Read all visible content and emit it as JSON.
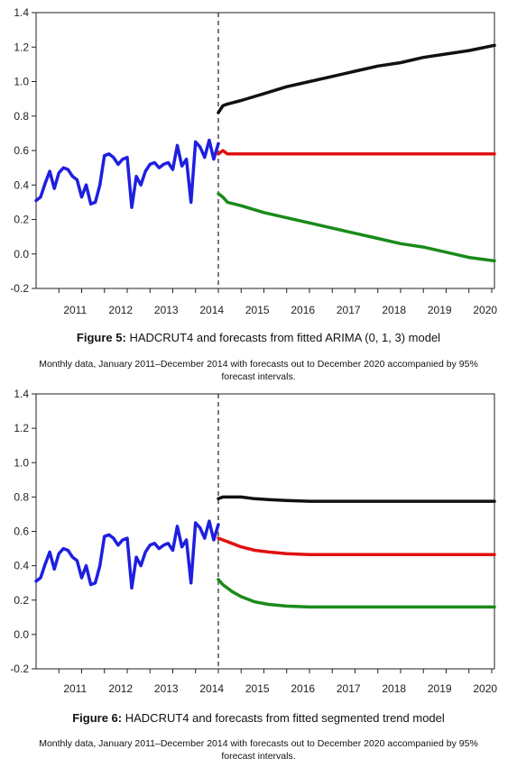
{
  "figures": [
    {
      "label": "Figure 5:",
      "title": "HADCRUT4 and forecasts from fitted ARIMA (0, 1, 3) model",
      "subtitle": "Monthly data, January 2011–December 2014 with forecasts out to December 2020 accompanied by 95% forecast intervals."
    },
    {
      "label": "Figure 6:",
      "title": "HADCRUT4 and forecasts from fitted segmented trend model",
      "subtitle": "Monthly data, January 2011–December 2014 with forecasts out to December 2020 accompanied by 95% forecast intervals."
    }
  ],
  "chart_data": [
    {
      "type": "line",
      "title": "",
      "xlabel": "",
      "ylabel": "",
      "xlim": [
        2010.5,
        2020.56
      ],
      "ylim": [
        -0.2,
        1.4
      ],
      "yticks": [
        -0.2,
        0.0,
        0.2,
        0.4,
        0.6,
        0.8,
        1.0,
        1.2,
        1.4
      ],
      "ytick_labels": [
        "-0.2",
        "0.0",
        "0.2",
        "0.4",
        "0.6",
        "0.8",
        "1.0",
        "1.2",
        "1.4"
      ],
      "xtick_labels": [
        "2011",
        "2012",
        "2013",
        "2014",
        "2015",
        "2016",
        "2017",
        "2018",
        "2019",
        "2020"
      ],
      "xtick_positions": [
        2011,
        2012,
        2013,
        2014,
        2015,
        2016,
        2017,
        2018,
        2019,
        2020
      ],
      "forecast_start": 2014.5,
      "grid": false,
      "series": [
        {
          "role": "observed",
          "color": "#1f1fe0",
          "x": [
            2010.5,
            2010.6,
            2010.7,
            2010.8,
            2010.9,
            2011.0,
            2011.1,
            2011.2,
            2011.3,
            2011.4,
            2011.5,
            2011.6,
            2011.7,
            2011.8,
            2011.9,
            2012.0,
            2012.1,
            2012.2,
            2012.3,
            2012.4,
            2012.5,
            2012.6,
            2012.7,
            2012.8,
            2012.9,
            2013.0,
            2013.1,
            2013.2,
            2013.3,
            2013.4,
            2013.5,
            2013.6,
            2013.7,
            2013.8,
            2013.9,
            2014.0,
            2014.1,
            2014.2,
            2014.3,
            2014.4,
            2014.5
          ],
          "y": [
            0.31,
            0.33,
            0.41,
            0.48,
            0.38,
            0.47,
            0.5,
            0.49,
            0.45,
            0.43,
            0.33,
            0.4,
            0.29,
            0.3,
            0.4,
            0.57,
            0.58,
            0.56,
            0.52,
            0.55,
            0.56,
            0.27,
            0.45,
            0.4,
            0.48,
            0.52,
            0.53,
            0.5,
            0.52,
            0.53,
            0.49,
            0.63,
            0.51,
            0.55,
            0.3,
            0.65,
            0.62,
            0.56,
            0.66,
            0.55,
            0.64
          ]
        },
        {
          "role": "upper-95",
          "color": "#111111",
          "x": [
            2014.5,
            2014.6,
            2014.7,
            2015.0,
            2015.5,
            2016.0,
            2016.5,
            2017.0,
            2017.5,
            2018.0,
            2018.5,
            2019.0,
            2019.5,
            2020.0,
            2020.56
          ],
          "y": [
            0.82,
            0.86,
            0.87,
            0.89,
            0.93,
            0.97,
            1.0,
            1.03,
            1.06,
            1.09,
            1.11,
            1.14,
            1.16,
            1.18,
            1.21
          ]
        },
        {
          "role": "forecast",
          "color": "#e01010",
          "x": [
            2014.5,
            2014.6,
            2014.7,
            2015.0,
            2016.0,
            2017.0,
            2018.0,
            2019.0,
            2020.0,
            2020.56
          ],
          "y": [
            0.58,
            0.6,
            0.58,
            0.58,
            0.58,
            0.58,
            0.58,
            0.58,
            0.58,
            0.58
          ]
        },
        {
          "role": "lower-95",
          "color": "#1a8a1a",
          "x": [
            2014.5,
            2014.6,
            2014.7,
            2015.0,
            2015.5,
            2016.0,
            2016.5,
            2017.0,
            2017.5,
            2018.0,
            2018.5,
            2019.0,
            2019.5,
            2020.0,
            2020.56
          ],
          "y": [
            0.35,
            0.33,
            0.3,
            0.28,
            0.24,
            0.21,
            0.18,
            0.15,
            0.12,
            0.09,
            0.06,
            0.04,
            0.01,
            -0.02,
            -0.04
          ]
        }
      ]
    },
    {
      "type": "line",
      "title": "",
      "xlabel": "",
      "ylabel": "",
      "xlim": [
        2010.5,
        2020.56
      ],
      "ylim": [
        -0.2,
        1.4
      ],
      "yticks": [
        -0.2,
        0.0,
        0.2,
        0.4,
        0.6,
        0.8,
        1.0,
        1.2,
        1.4
      ],
      "ytick_labels": [
        "-0.2",
        "0.0",
        "0.2",
        "0.4",
        "0.6",
        "0.8",
        "1.0",
        "1.2",
        "1.4"
      ],
      "xtick_labels": [
        "2011",
        "2012",
        "2013",
        "2014",
        "2015",
        "2016",
        "2017",
        "2018",
        "2019",
        "2020"
      ],
      "xtick_positions": [
        2011,
        2012,
        2013,
        2014,
        2015,
        2016,
        2017,
        2018,
        2019,
        2020
      ],
      "forecast_start": 2014.5,
      "grid": false,
      "series": [
        {
          "role": "observed",
          "color": "#1f1fe0",
          "x": [
            2010.5,
            2010.6,
            2010.7,
            2010.8,
            2010.9,
            2011.0,
            2011.1,
            2011.2,
            2011.3,
            2011.4,
            2011.5,
            2011.6,
            2011.7,
            2011.8,
            2011.9,
            2012.0,
            2012.1,
            2012.2,
            2012.3,
            2012.4,
            2012.5,
            2012.6,
            2012.7,
            2012.8,
            2012.9,
            2013.0,
            2013.1,
            2013.2,
            2013.3,
            2013.4,
            2013.5,
            2013.6,
            2013.7,
            2013.8,
            2013.9,
            2014.0,
            2014.1,
            2014.2,
            2014.3,
            2014.4,
            2014.5
          ],
          "y": [
            0.31,
            0.33,
            0.41,
            0.48,
            0.38,
            0.47,
            0.5,
            0.49,
            0.45,
            0.43,
            0.33,
            0.4,
            0.29,
            0.3,
            0.4,
            0.57,
            0.58,
            0.56,
            0.52,
            0.55,
            0.56,
            0.27,
            0.45,
            0.4,
            0.48,
            0.52,
            0.53,
            0.5,
            0.52,
            0.53,
            0.49,
            0.63,
            0.51,
            0.55,
            0.3,
            0.65,
            0.62,
            0.56,
            0.66,
            0.55,
            0.64
          ]
        },
        {
          "role": "upper-95",
          "color": "#111111",
          "x": [
            2014.5,
            2014.6,
            2014.8,
            2015.0,
            2015.3,
            2015.6,
            2016.0,
            2016.5,
            2017.0,
            2018.0,
            2019.0,
            2020.0,
            2020.56
          ],
          "y": [
            0.79,
            0.8,
            0.8,
            0.8,
            0.79,
            0.785,
            0.78,
            0.775,
            0.775,
            0.775,
            0.775,
            0.775,
            0.775
          ]
        },
        {
          "role": "forecast",
          "color": "#e01010",
          "x": [
            2014.5,
            2014.6,
            2014.8,
            2015.0,
            2015.3,
            2015.6,
            2016.0,
            2016.5,
            2017.0,
            2018.0,
            2019.0,
            2020.0,
            2020.56
          ],
          "y": [
            0.56,
            0.55,
            0.53,
            0.51,
            0.49,
            0.48,
            0.47,
            0.465,
            0.465,
            0.465,
            0.465,
            0.465,
            0.465
          ]
        },
        {
          "role": "lower-95",
          "color": "#1a8a1a",
          "x": [
            2014.5,
            2014.6,
            2014.8,
            2015.0,
            2015.3,
            2015.6,
            2016.0,
            2016.5,
            2017.0,
            2018.0,
            2019.0,
            2020.0,
            2020.56
          ],
          "y": [
            0.32,
            0.29,
            0.25,
            0.22,
            0.19,
            0.175,
            0.165,
            0.16,
            0.16,
            0.16,
            0.16,
            0.16,
            0.16
          ]
        }
      ]
    }
  ]
}
